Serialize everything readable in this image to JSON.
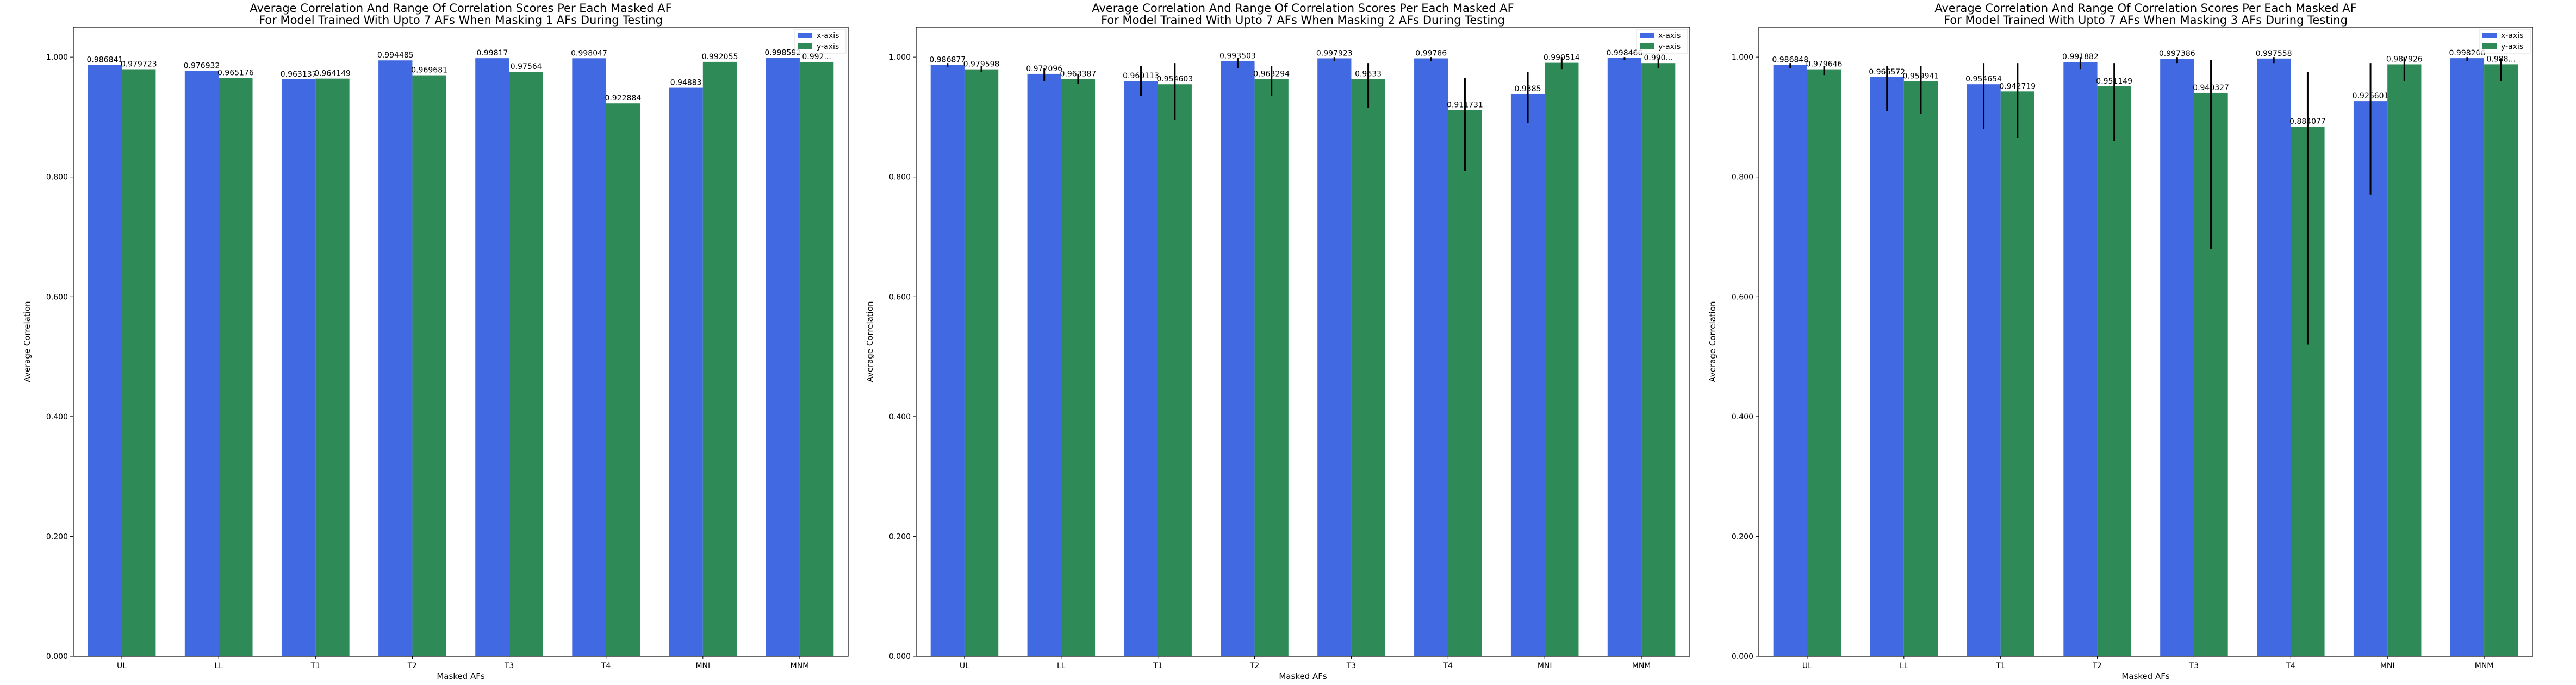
{
  "colors": {
    "x_axis": "#4169e1",
    "y_axis": "#2e8b57",
    "error": "#000000"
  },
  "legend_position": "top-right",
  "chart_data": [
    {
      "type": "bar",
      "title": "Average Correlation And Range Of Correlation Scores Per Each Masked AF",
      "subtitle": "For Model Trained With Upto 7 AFs When Masking 1 AFs During Testing",
      "xlabel": "Masked AFs",
      "ylabel": "Average Correlation",
      "ylim": [
        0,
        1.05
      ],
      "yticks": [
        "0.000",
        "0.200",
        "0.400",
        "0.600",
        "0.800",
        "1.000"
      ],
      "categories": [
        "UL",
        "LL",
        "T1",
        "T2",
        "T3",
        "T4",
        "MNI",
        "MNM"
      ],
      "series": [
        {
          "name": "x-axis",
          "values": [
            0.986841,
            0.976932,
            0.963137,
            0.994485,
            0.99817,
            0.998047,
            0.94883,
            0.998592
          ],
          "labels": [
            "0.986841",
            "0.976932",
            "0.963137",
            "0.994485",
            "0.99817",
            "0.998047",
            "0.94883",
            "0.998592"
          ],
          "error_low": [
            0.986841,
            0.976932,
            0.963137,
            0.994485,
            0.99817,
            0.998047,
            0.94883,
            0.998592
          ],
          "error_high": [
            0.986841,
            0.976932,
            0.963137,
            0.994485,
            0.99817,
            0.998047,
            0.94883,
            0.998592
          ]
        },
        {
          "name": "y-axis",
          "values": [
            0.979723,
            0.965176,
            0.964149,
            0.969681,
            0.97564,
            0.922884,
            0.992055,
            0.992
          ],
          "labels": [
            "0.979723",
            "0.965176",
            "0.964149",
            "0.969681",
            "0.97564",
            "0.922884",
            "0.992055",
            "0.992..."
          ],
          "error_low": [
            0.979723,
            0.965176,
            0.964149,
            0.969681,
            0.97564,
            0.922884,
            0.992055,
            0.992
          ],
          "error_high": [
            0.979723,
            0.965176,
            0.964149,
            0.969681,
            0.97564,
            0.922884,
            0.992055,
            0.992
          ]
        }
      ]
    },
    {
      "type": "bar",
      "title": "Average Correlation And Range Of Correlation Scores Per Each Masked AF",
      "subtitle": "For Model Trained With Upto 7 AFs When Masking 2 AFs During Testing",
      "xlabel": "Masked AFs",
      "ylabel": "Average Correlation",
      "ylim": [
        0,
        1.05
      ],
      "yticks": [
        "0.000",
        "0.200",
        "0.400",
        "0.600",
        "0.800",
        "1.000"
      ],
      "categories": [
        "UL",
        "LL",
        "T1",
        "T2",
        "T3",
        "T4",
        "MNI",
        "MNM"
      ],
      "series": [
        {
          "name": "x-axis",
          "values": [
            0.986877,
            0.972096,
            0.960113,
            0.993503,
            0.997923,
            0.99786,
            0.9385,
            0.998466
          ],
          "labels": [
            "0.986877",
            "0.972096",
            "0.960113",
            "0.993503",
            "0.997923",
            "0.99786",
            "0.9385",
            "0.998466"
          ],
          "error_low": [
            0.984,
            0.96,
            0.935,
            0.982,
            0.993,
            0.993,
            0.89,
            0.995
          ],
          "error_high": [
            0.99,
            0.982,
            0.985,
            0.999,
            1.0,
            1.0,
            0.975,
            1.0
          ]
        },
        {
          "name": "y-axis",
          "values": [
            0.979598,
            0.963387,
            0.954603,
            0.963294,
            0.9633,
            0.911731,
            0.990514,
            0.99
          ],
          "labels": [
            "0.979598",
            "0.963387",
            "0.954603",
            "0.963294",
            "0.9633",
            "0.911731",
            "0.990514",
            "0.990..."
          ],
          "error_low": [
            0.975,
            0.955,
            0.895,
            0.935,
            0.915,
            0.81,
            0.98,
            0.982
          ],
          "error_high": [
            0.985,
            0.972,
            0.99,
            0.985,
            0.99,
            0.965,
            1.0,
            0.998
          ]
        }
      ]
    },
    {
      "type": "bar",
      "title": "Average Correlation And Range Of Correlation Scores Per Each Masked AF",
      "subtitle": "For Model Trained With Upto 7 AFs When Masking 3 AFs During Testing",
      "xlabel": "Masked AFs",
      "ylabel": "Average Correlation",
      "ylim": [
        0,
        1.05
      ],
      "yticks": [
        "0.000",
        "0.200",
        "0.400",
        "0.600",
        "0.800",
        "1.000"
      ],
      "categories": [
        "UL",
        "LL",
        "T1",
        "T2",
        "T3",
        "T4",
        "MNI",
        "MNM"
      ],
      "series": [
        {
          "name": "x-axis",
          "values": [
            0.986848,
            0.966572,
            0.954654,
            0.991882,
            0.997386,
            0.997558,
            0.926601,
            0.998206
          ],
          "labels": [
            "0.986848",
            "0.966572",
            "0.954654",
            "0.991882",
            "0.997386",
            "0.997558",
            "0.926601",
            "0.998206"
          ],
          "error_low": [
            0.982,
            0.91,
            0.88,
            0.98,
            0.99,
            0.99,
            0.77,
            0.993
          ],
          "error_high": [
            0.99,
            0.985,
            0.99,
            1.0,
            1.0,
            1.0,
            0.99,
            1.0
          ]
        },
        {
          "name": "y-axis",
          "values": [
            0.979646,
            0.959941,
            0.942719,
            0.951149,
            0.940327,
            0.884077,
            0.987926,
            0.988
          ],
          "labels": [
            "0.979646",
            "0.959941",
            "0.942719",
            "0.951149",
            "0.940327",
            "0.884077",
            "0.987926",
            "0.988..."
          ],
          "error_low": [
            0.97,
            0.905,
            0.865,
            0.86,
            0.68,
            0.52,
            0.96,
            0.96
          ],
          "error_high": [
            0.985,
            0.985,
            0.99,
            0.99,
            0.995,
            0.975,
            1.0,
            0.998
          ]
        }
      ]
    }
  ]
}
